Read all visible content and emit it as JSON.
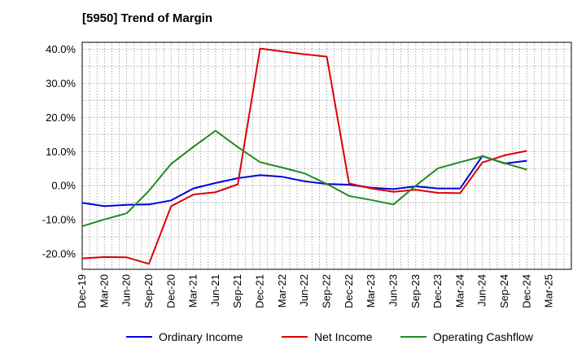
{
  "chart_data": {
    "type": "line",
    "title": "[5950]  Trend of Margin",
    "xlabel": "",
    "ylabel": "",
    "categories": [
      "Dec-19",
      "Mar-20",
      "Jun-20",
      "Sep-20",
      "Dec-20",
      "Mar-21",
      "Jun-21",
      "Sep-21",
      "Dec-21",
      "Mar-22",
      "Jun-22",
      "Sep-22",
      "Dec-22",
      "Mar-23",
      "Jun-23",
      "Sep-23",
      "Dec-23",
      "Mar-24",
      "Jun-24",
      "Sep-24",
      "Dec-24",
      "Mar-25"
    ],
    "ylim": [
      -24.5,
      42
    ],
    "yticks": [
      -20,
      -10,
      0,
      10,
      20,
      30,
      40
    ],
    "ytick_labels": [
      "-20.0%",
      "-10.0%",
      "0.0%",
      "10.0%",
      "20.0%",
      "30.0%",
      "40.0%"
    ],
    "grid": true,
    "legend_position": "bottom",
    "series": [
      {
        "name": "Ordinary Income",
        "color": "#0000dd",
        "values": [
          -5.0,
          -6.0,
          -5.6,
          -5.5,
          -4.3,
          -0.8,
          0.8,
          2.2,
          3.1,
          2.6,
          1.3,
          0.5,
          0.3,
          -0.6,
          -1.0,
          -0.2,
          -0.8,
          -0.8,
          8.7,
          6.5,
          7.3,
          null
        ]
      },
      {
        "name": "Net Income",
        "color": "#dd0000",
        "values": [
          -21.3,
          -20.9,
          -21.0,
          -22.9,
          -6.0,
          -2.6,
          -1.9,
          0.4,
          40.2,
          39.3,
          38.5,
          37.8,
          0.7,
          -0.8,
          -1.8,
          -1.2,
          -2.1,
          -2.2,
          6.8,
          8.9,
          10.2,
          null
        ]
      },
      {
        "name": "Operating Cashflow",
        "color": "#228b22",
        "values": [
          -11.9,
          -9.9,
          -8.1,
          -1.5,
          6.4,
          11.4,
          16.1,
          11.3,
          6.9,
          5.3,
          3.6,
          0.5,
          -3.0,
          -4.2,
          -5.5,
          0.0,
          5.1,
          6.9,
          8.6,
          6.6,
          4.7,
          null
        ]
      }
    ]
  }
}
